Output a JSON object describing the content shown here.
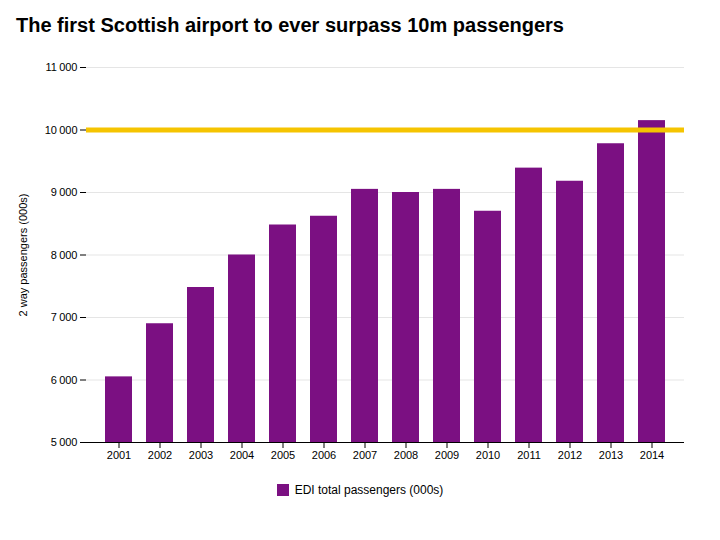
{
  "chart_data": {
    "type": "bar",
    "title": "The first Scottish airport to ever surpass 10m passengers",
    "ylabel": "2 way passengers (000s)",
    "categories": [
      "2001",
      "2002",
      "2003",
      "2004",
      "2005",
      "2006",
      "2007",
      "2008",
      "2009",
      "2010",
      "2011",
      "2012",
      "2013",
      "2014"
    ],
    "series": [
      {
        "name": "EDI total passengers (000s)",
        "color": "#7B1082",
        "values": [
          6050,
          6900,
          7480,
          8000,
          8480,
          8620,
          9050,
          9000,
          9050,
          8700,
          9390,
          9180,
          9780,
          10150
        ]
      }
    ],
    "ylim": [
      5000,
      11000
    ],
    "yticks": [
      {
        "value": 5000,
        "label": "5 000"
      },
      {
        "value": 6000,
        "label": "6 000"
      },
      {
        "value": 7000,
        "label": "7 000"
      },
      {
        "value": 8000,
        "label": "8 000"
      },
      {
        "value": 9000,
        "label": "9 000"
      },
      {
        "value": 10000,
        "label": "10 000"
      },
      {
        "value": 11000,
        "label": "11 000"
      }
    ],
    "reference_lines": [
      {
        "y": 10000,
        "color": "#F5C400"
      }
    ],
    "grid": true,
    "legend": "bottom"
  }
}
